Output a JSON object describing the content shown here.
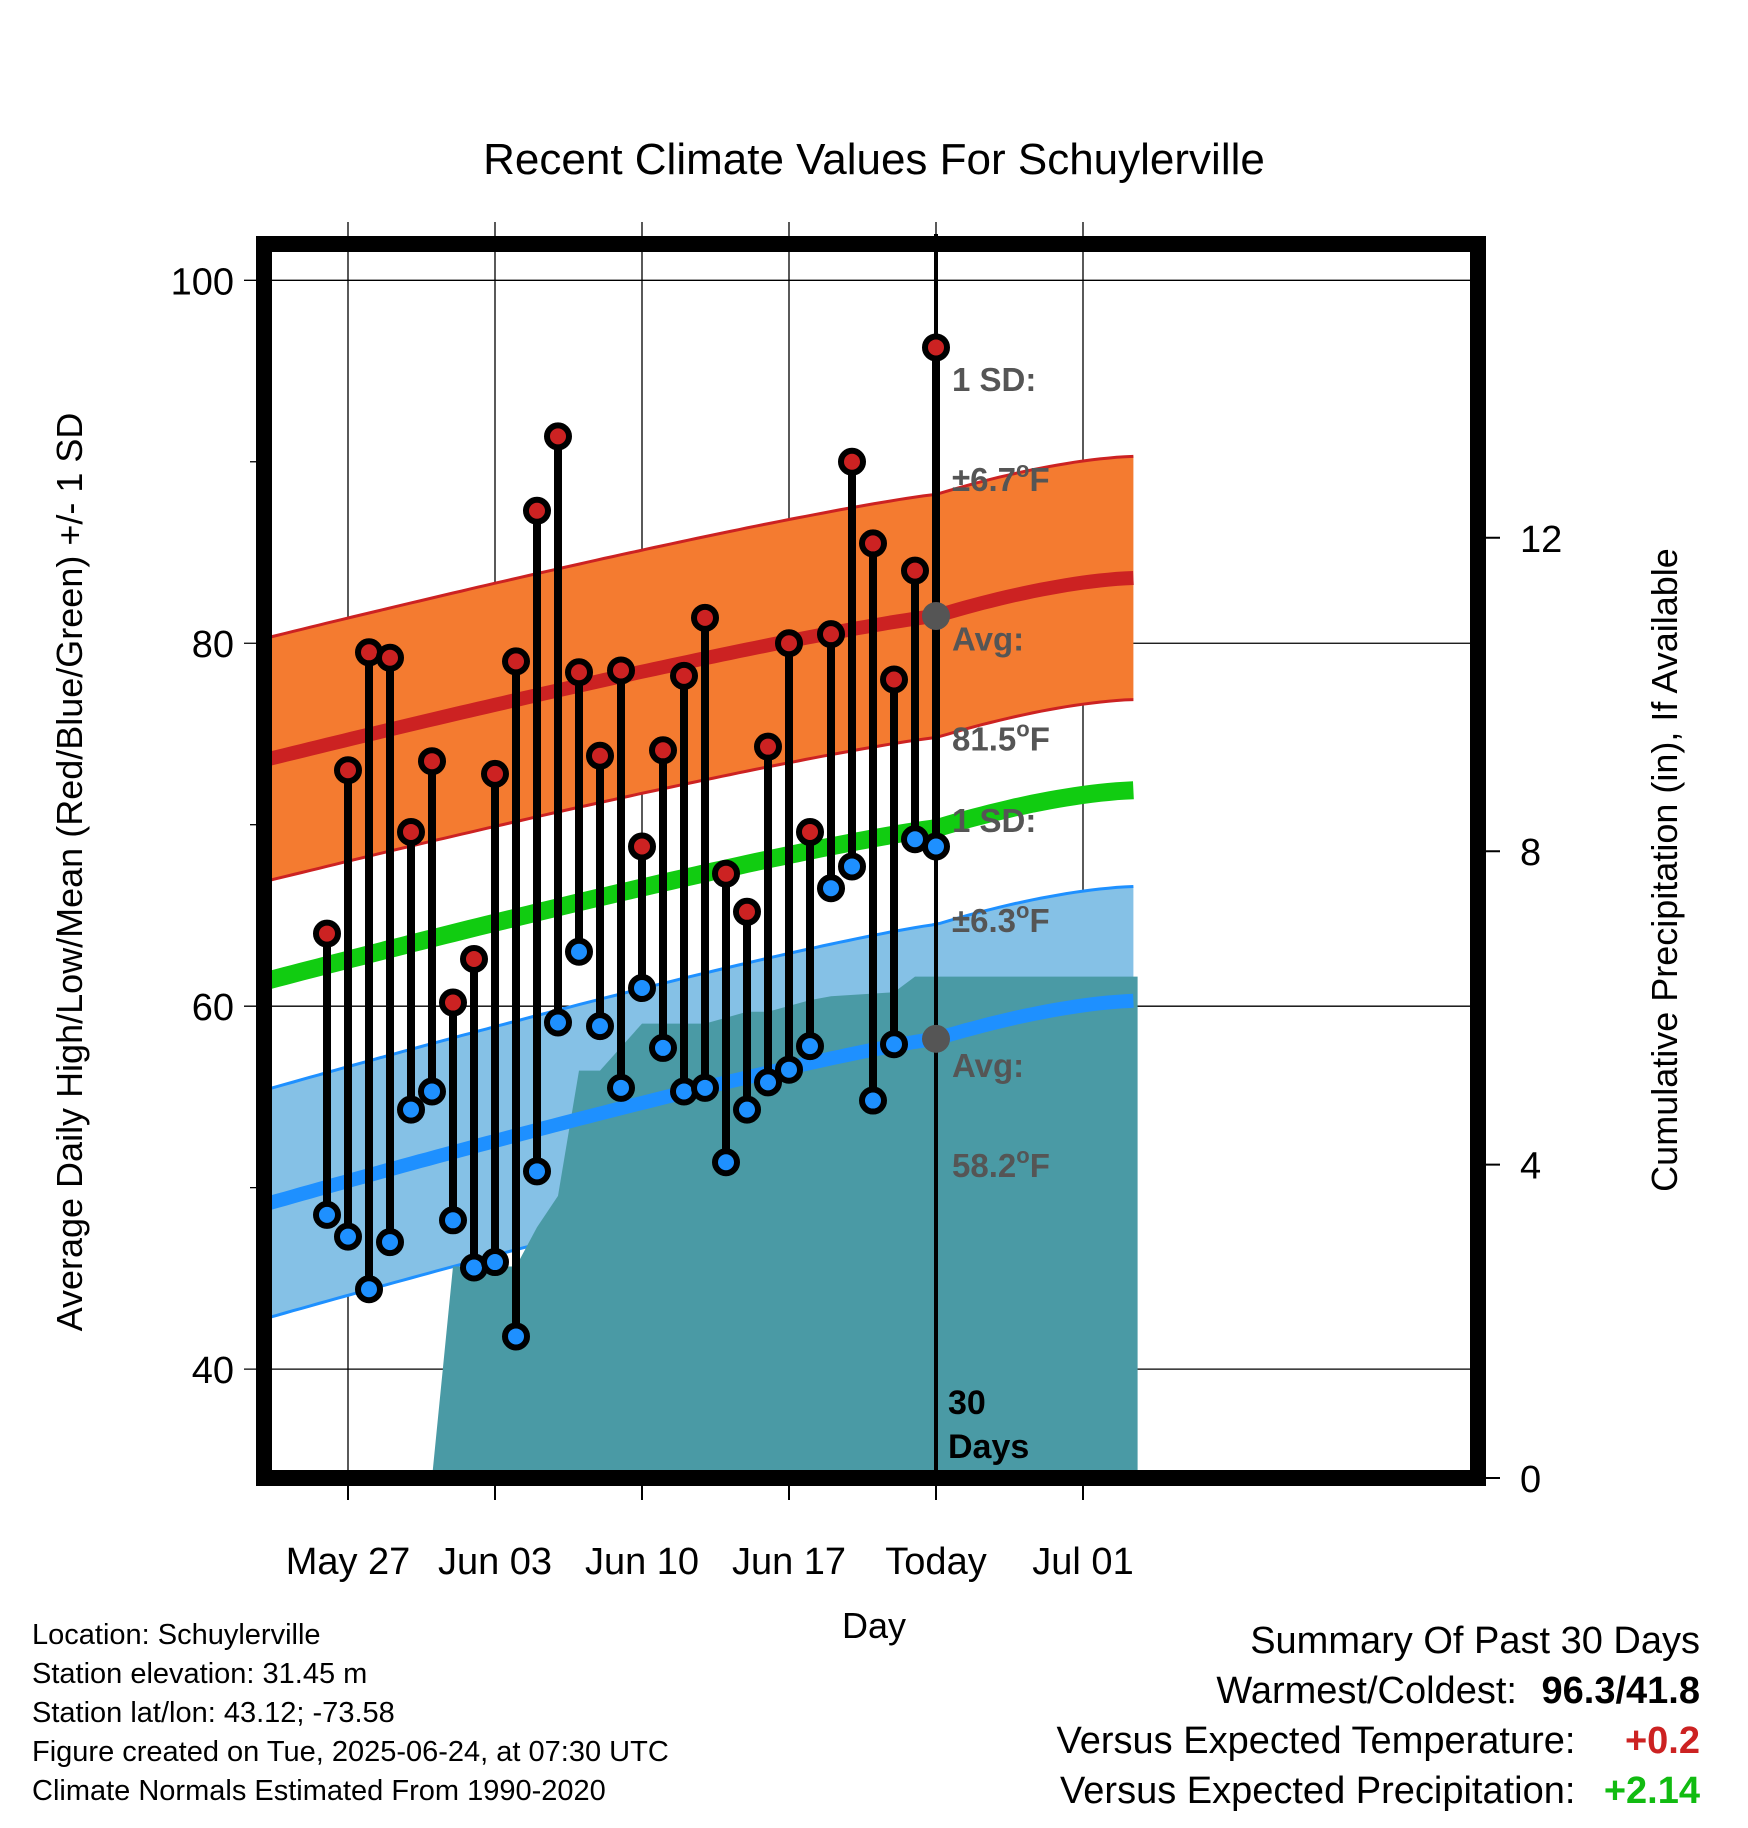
{
  "chart_data": {
    "type": "line",
    "title": "Recent Climate Values For Schuylerville",
    "xlabel": "Day",
    "ylabel": "Average Daily High/Low/Mean (Red/Blue/Green) +/- 1 SD",
    "y2label": "Cumulative Precipitation (in), If Available",
    "ylim": [
      34,
      102
    ],
    "y2lim": [
      0,
      15.75
    ],
    "x_ticks": [
      {
        "day": 2,
        "label": "May 27"
      },
      {
        "day": 9,
        "label": "Jun 03"
      },
      {
        "day": 16,
        "label": "Jun 10"
      },
      {
        "day": 23,
        "label": "Jun 17"
      },
      {
        "day": 30,
        "label": "Today"
      },
      {
        "day": 37,
        "label": "Jul 01"
      }
    ],
    "y_ticks": [
      40,
      60,
      80,
      100
    ],
    "y2_ticks": [
      0,
      4,
      8,
      12
    ],
    "grid": true,
    "today_marker": {
      "day": 30,
      "label_line1": "30",
      "label_line2": "Days"
    },
    "normal_high": {
      "start": 73.5,
      "today": 81.5,
      "end": 83.6,
      "sd": 6.7,
      "sd_label_line1": "1 SD:",
      "sd_label_line2": "±6.7",
      "avg_label_line1": "Avg:",
      "avg_label_line2": "81.5",
      "unit_sup": "o",
      "unit": "F"
    },
    "normal_low": {
      "start": 49.0,
      "today": 58.2,
      "end": 60.3,
      "sd": 6.3,
      "sd_label_line1": "1 SD:",
      "sd_label_line2": "±6.3",
      "avg_label_line1": "Avg:",
      "avg_label_line2": "58.2",
      "unit_sup": "o",
      "unit": "F"
    },
    "normal_mean": {
      "start": 61.3,
      "today": 69.8,
      "end": 71.9
    },
    "highs": [
      64.0,
      73.0,
      79.5,
      79.2,
      69.6,
      73.5,
      60.2,
      62.6,
      72.8,
      79.0,
      87.3,
      91.4,
      78.4,
      73.8,
      78.5,
      68.8,
      74.1,
      78.2,
      81.4,
      67.3,
      65.2,
      74.3,
      80.0,
      69.6,
      80.5,
      90.0,
      85.5,
      78.0,
      84.0,
      96.3
    ],
    "lows": [
      48.5,
      47.3,
      44.4,
      47.0,
      54.3,
      55.3,
      48.2,
      45.6,
      45.9,
      41.8,
      50.9,
      59.1,
      63.0,
      58.9,
      55.5,
      61.0,
      57.7,
      55.3,
      55.5,
      51.4,
      54.3,
      55.8,
      56.5,
      57.8,
      66.5,
      67.7,
      54.8,
      57.9,
      69.2,
      68.8
    ],
    "cumulative_precip": [
      {
        "day": 6,
        "value": 0.0
      },
      {
        "day": 7,
        "value": 2.7
      },
      {
        "day": 10,
        "value": 2.7
      },
      {
        "day": 11,
        "value": 3.2
      },
      {
        "day": 12,
        "value": 3.6
      },
      {
        "day": 13,
        "value": 5.2
      },
      {
        "day": 14,
        "value": 5.2
      },
      {
        "day": 16,
        "value": 5.8
      },
      {
        "day": 19,
        "value": 5.8
      },
      {
        "day": 21,
        "value": 5.95
      },
      {
        "day": 22,
        "value": 5.95
      },
      {
        "day": 24,
        "value": 6.1
      },
      {
        "day": 25,
        "value": 6.15
      },
      {
        "day": 28,
        "value": 6.2
      },
      {
        "day": 29,
        "value": 6.4
      },
      {
        "day": 39.6,
        "value": 6.4
      }
    ],
    "colors": {
      "high": "#cc2222",
      "high_band": "#f47b30",
      "low": "#1e90ff",
      "low_band": "#85c1e6",
      "mean": "#11cc11",
      "precip": "#4a9aa5",
      "marker_text": "#555555"
    }
  },
  "info": {
    "location": "Location: Schuylerville",
    "elevation": "Station elevation: 31.45 m",
    "latlon": "Station lat/lon: 43.12; -73.58",
    "created": "Figure created on Tue, 2025-06-24, at 07:30 UTC",
    "normals": "Climate Normals Estimated From 1990-2020"
  },
  "summary": {
    "heading": "Summary Of Past 30 Days",
    "warmest_label": "Warmest/Coldest:",
    "warmest_value": "96.3/41.8",
    "temp_label": "Versus Expected Temperature:",
    "temp_value": "+0.2",
    "temp_color": "#cc2222",
    "precip_label": "Versus Expected Precipitation:",
    "precip_value": "+2.14",
    "precip_color": "#11bb11"
  }
}
